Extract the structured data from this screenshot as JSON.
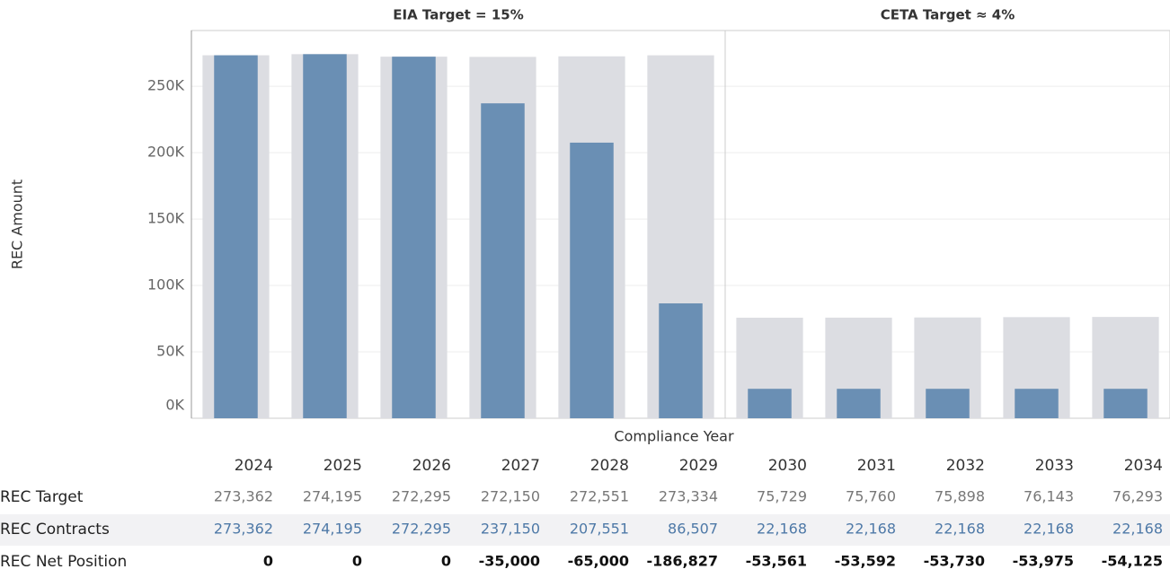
{
  "chart_data": {
    "type": "bar",
    "panels": [
      {
        "title": "EIA Target = 15%",
        "categories": [
          "2024",
          "2025",
          "2026",
          "2027",
          "2028",
          "2029"
        ]
      },
      {
        "title": "CETA Target ≈ 4%",
        "categories": [
          "2030",
          "2031",
          "2032",
          "2033",
          "2034"
        ]
      }
    ],
    "x_label": "Compliance Year",
    "y_label": "REC Amount",
    "ylim": [
      0,
      292000
    ],
    "yticks": [
      {
        "value": 0,
        "label": "0K"
      },
      {
        "value": 50000,
        "label": "50K"
      },
      {
        "value": 100000,
        "label": "100K"
      },
      {
        "value": 150000,
        "label": "150K"
      },
      {
        "value": 200000,
        "label": "200K"
      },
      {
        "value": 250000,
        "label": "250K"
      }
    ],
    "grid": true,
    "series": [
      {
        "name": "REC Target",
        "color": "#dcdde2",
        "text_color": "#777777",
        "values": [
          273362,
          274195,
          272295,
          272150,
          272551,
          273334,
          75729,
          75760,
          75898,
          76143,
          76293
        ],
        "value_labels": [
          "273,362",
          "274,195",
          "272,295",
          "272,150",
          "272,551",
          "273,334",
          "75,729",
          "75,760",
          "75,898",
          "76,143",
          "76,293"
        ]
      },
      {
        "name": "REC Contracts",
        "color": "#6a8fb4",
        "text_color": "#4e79a7",
        "values": [
          273362,
          274195,
          272295,
          237150,
          207551,
          86507,
          22168,
          22168,
          22168,
          22168,
          22168
        ],
        "value_labels": [
          "273,362",
          "274,195",
          "272,295",
          "237,150",
          "207,551",
          "86,507",
          "22,168",
          "22,168",
          "22,168",
          "22,168",
          "22,168"
        ]
      },
      {
        "name": "REC Net Position",
        "text_color": "#111111",
        "values": [
          0,
          0,
          0,
          -35000,
          -65000,
          -186827,
          -53561,
          -53592,
          -53730,
          -53975,
          -54125
        ],
        "value_labels": [
          "0",
          "0",
          "0",
          "-35,000",
          "-65,000",
          "-186,827",
          "-53,561",
          "-53,592",
          "-53,730",
          "-53,975",
          "-54,125"
        ]
      }
    ]
  }
}
